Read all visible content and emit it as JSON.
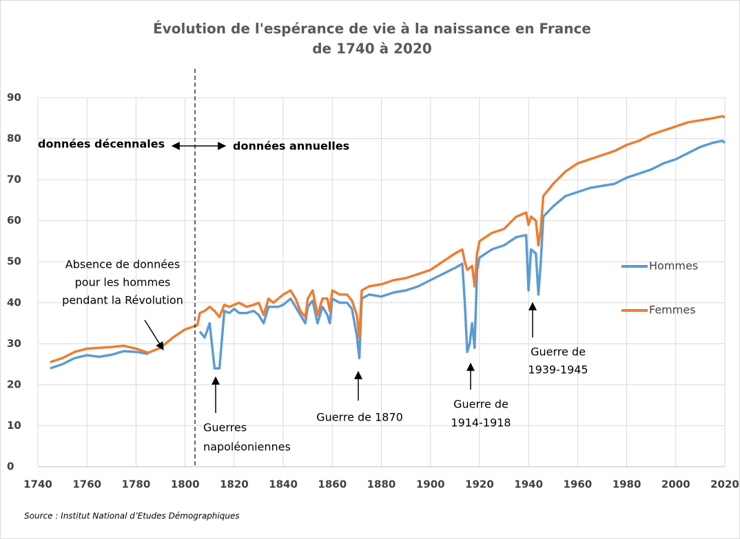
{
  "chart_data": {
    "type": "line",
    "title": [
      "Évolution de l'espérance de vie à la naissance en France",
      "de 1740 à 2020"
    ],
    "source": "Source : Institut National d’Etudes Démographiques",
    "x": [
      1745,
      1750,
      1755,
      1760,
      1765,
      1770,
      1775,
      1780,
      1785,
      1790,
      1795,
      1800,
      1805,
      1806,
      1808,
      1810,
      1812,
      1814,
      1816,
      1818,
      1820,
      1822,
      1825,
      1828,
      1830,
      1832,
      1834,
      1836,
      1838,
      1840,
      1843,
      1845,
      1847,
      1849,
      1850,
      1852,
      1854,
      1856,
      1858,
      1859,
      1860,
      1863,
      1866,
      1868,
      1870,
      1871,
      1872,
      1875,
      1880,
      1885,
      1890,
      1895,
      1900,
      1905,
      1910,
      1913,
      1914,
      1915,
      1916,
      1917,
      1918,
      1919,
      1920,
      1925,
      1930,
      1935,
      1939,
      1940,
      1941,
      1943,
      1944,
      1945,
      1946,
      1950,
      1955,
      1960,
      1965,
      1970,
      1975,
      1980,
      1985,
      1990,
      1995,
      2000,
      2005,
      2010,
      2015,
      2019,
      2020
    ],
    "series": [
      {
        "name": "Hommes",
        "color": "#5b9bd5",
        "values": [
          24,
          25,
          26.5,
          27.2,
          26.8,
          27.3,
          28.2,
          28,
          27.5,
          null,
          null,
          null,
          null,
          33,
          31.5,
          35,
          24,
          24,
          38,
          37.5,
          38.5,
          37.5,
          37.5,
          38,
          37,
          35,
          39,
          39,
          39,
          39.5,
          41,
          39,
          37,
          35,
          39,
          40.5,
          35,
          39,
          37,
          35,
          41,
          40,
          40,
          38.5,
          32,
          26.5,
          41,
          42,
          41.5,
          42.5,
          43,
          44,
          45.5,
          47,
          48.5,
          49.5,
          40,
          28,
          30,
          35,
          29,
          48,
          51,
          53,
          54,
          56,
          56.5,
          43,
          53,
          52,
          42,
          50,
          61,
          63.5,
          66,
          67,
          68,
          68.5,
          69,
          70.5,
          71.5,
          72.5,
          74,
          75,
          76.5,
          78,
          79,
          79.5,
          79
        ]
      },
      {
        "name": "Femmes",
        "color": "#ed7d31",
        "values": [
          25.5,
          26.5,
          28,
          28.8,
          29,
          29.2,
          29.5,
          28.8,
          27.8,
          29,
          31.5,
          33.5,
          34.5,
          37.5,
          38,
          39,
          38,
          36.5,
          39.5,
          39,
          39.5,
          40,
          39,
          39.5,
          40,
          37,
          41,
          40,
          41,
          42,
          43,
          41,
          38,
          36.5,
          41,
          43,
          37,
          41,
          41,
          38,
          43,
          42,
          42,
          40.5,
          37,
          31.5,
          43,
          44,
          44.5,
          45.5,
          46,
          47,
          48,
          50,
          52,
          53,
          50,
          48,
          48.5,
          49,
          44,
          52,
          55,
          57,
          58,
          61,
          62,
          59,
          61,
          60,
          54,
          58,
          66,
          69,
          72,
          74,
          75,
          76,
          77,
          78.5,
          79.5,
          81,
          82,
          83,
          84,
          84.5,
          85,
          85.5,
          85.2
        ]
      }
    ],
    "xlim": [
      1740,
      2020
    ],
    "xticks": [
      1740,
      1760,
      1780,
      1800,
      1820,
      1840,
      1860,
      1880,
      1900,
      1920,
      1940,
      1960,
      1980,
      2000,
      2020
    ],
    "ylim": [
      0,
      90
    ],
    "yticks": [
      0,
      10,
      20,
      30,
      40,
      50,
      60,
      70,
      80,
      90
    ],
    "grid": true,
    "legend": "right",
    "annotations": [
      {
        "lines": [
          "données décennales"
        ]
      },
      {
        "lines": [
          "données annuelles"
        ]
      },
      {
        "lines": [
          "Absence de données",
          "pour les hommes",
          "pendant la Révolution"
        ]
      },
      {
        "lines": [
          "Guerres",
          "napoléoniennes"
        ]
      },
      {
        "lines": [
          "Guerre de 1870"
        ]
      },
      {
        "lines": [
          "Guerre de",
          "1914-1918"
        ]
      },
      {
        "lines": [
          "Guerre de",
          "1939-1945"
        ]
      }
    ]
  }
}
